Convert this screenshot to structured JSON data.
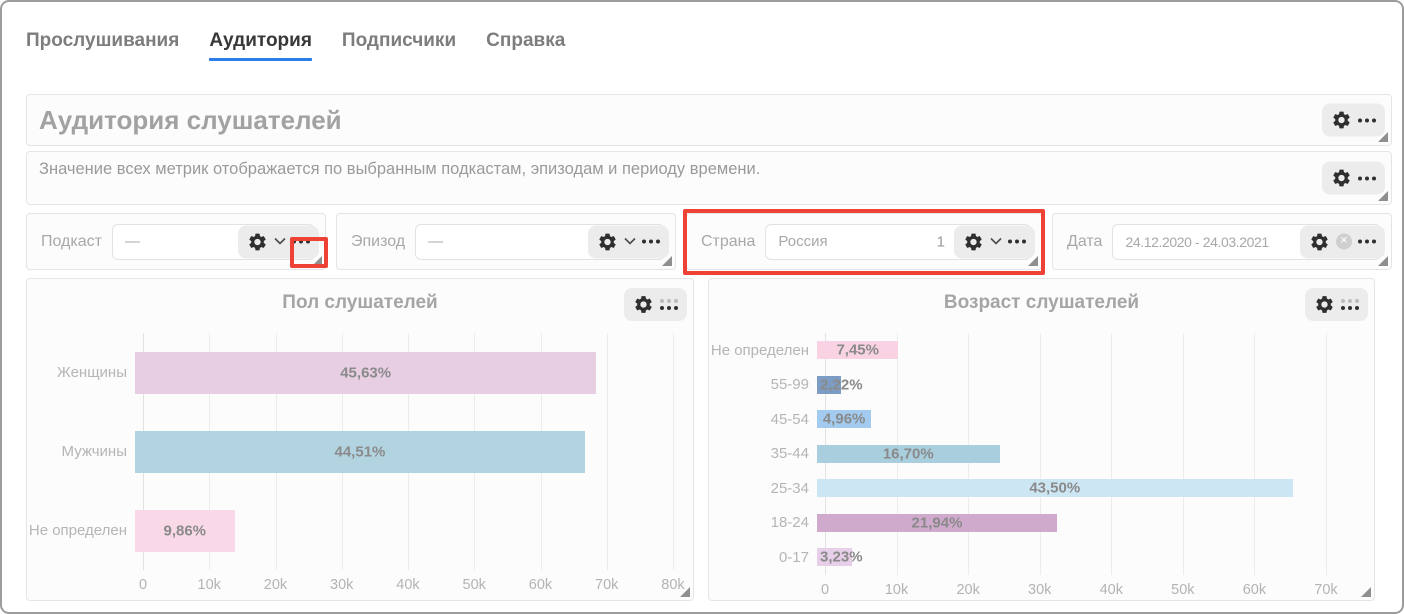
{
  "tabs": [
    {
      "label": "Прослушивания",
      "active": false
    },
    {
      "label": "Аудитория",
      "active": true
    },
    {
      "label": "Подписчики",
      "active": false
    },
    {
      "label": "Справка",
      "active": false
    }
  ],
  "header": {
    "title": "Аудитория слушателей"
  },
  "description": {
    "text": "Значение всех метрик отображается по выбранным подкастам, эпизодам и периоду времени."
  },
  "filters": [
    {
      "label": "Подкаст",
      "value": "—"
    },
    {
      "label": "Эпизод",
      "value": "—"
    },
    {
      "label": "Страна",
      "value": "Россия",
      "badge": "1",
      "highlighted": true
    },
    {
      "label": "Дата",
      "value": "24.12.2020 - 24.03.2021"
    }
  ],
  "icons": {
    "gear": "⚙",
    "ellipsis": "•••",
    "drag_dots": "⋮⋮⋮",
    "chevron_down": "⌄",
    "clear": "✕",
    "resize_corner": "◢"
  },
  "annotations": {
    "highlight_color": "#ee4236",
    "highlights": [
      "country-filter-box",
      "podcast-filter-resize-corner"
    ]
  },
  "colors": {
    "tab_underline": "#2b7de9",
    "panel_border": "#e5e5e5",
    "window_border": "#9c9c9c"
  },
  "chart_data": [
    {
      "type": "bar",
      "orientation": "horizontal",
      "title": "Пол слушателей",
      "categories": [
        "Женщины",
        "Мужчины",
        "Не определен"
      ],
      "values": [
        68600,
        66900,
        14800
      ],
      "labels": [
        "45,63%",
        "44,51%",
        "9,86%"
      ],
      "colors": [
        "#e7cee3",
        "#b2d3e0",
        "#f9d8e8"
      ],
      "xlim": [
        0,
        80000
      ],
      "ticks": [
        "0",
        "10k",
        "20k",
        "30k",
        "40k",
        "50k",
        "60k",
        "70k",
        "80k"
      ],
      "grid": true,
      "legend": false
    },
    {
      "type": "bar",
      "orientation": "horizontal",
      "title": "Возраст слушателей",
      "categories": [
        "Не определен",
        "55-99",
        "45-54",
        "35-44",
        "25-34",
        "18-24",
        "0-17"
      ],
      "values": [
        11200,
        3340,
        7460,
        25100,
        65400,
        33000,
        4860
      ],
      "labels": [
        "7,45%",
        "2,22%",
        "4,96%",
        "16,70%",
        "43,50%",
        "21,94%",
        "3,23%"
      ],
      "colors": [
        "#f9d3e3",
        "#7d9cc4",
        "#a3cbf0",
        "#a9cede",
        "#cde6f4",
        "#d0aacd",
        "#e7cfe9"
      ],
      "xlim": [
        0,
        70000
      ],
      "ticks": [
        "0",
        "10k",
        "20k",
        "30k",
        "40k",
        "50k",
        "60k",
        "70k"
      ],
      "grid": true,
      "legend": false
    }
  ]
}
